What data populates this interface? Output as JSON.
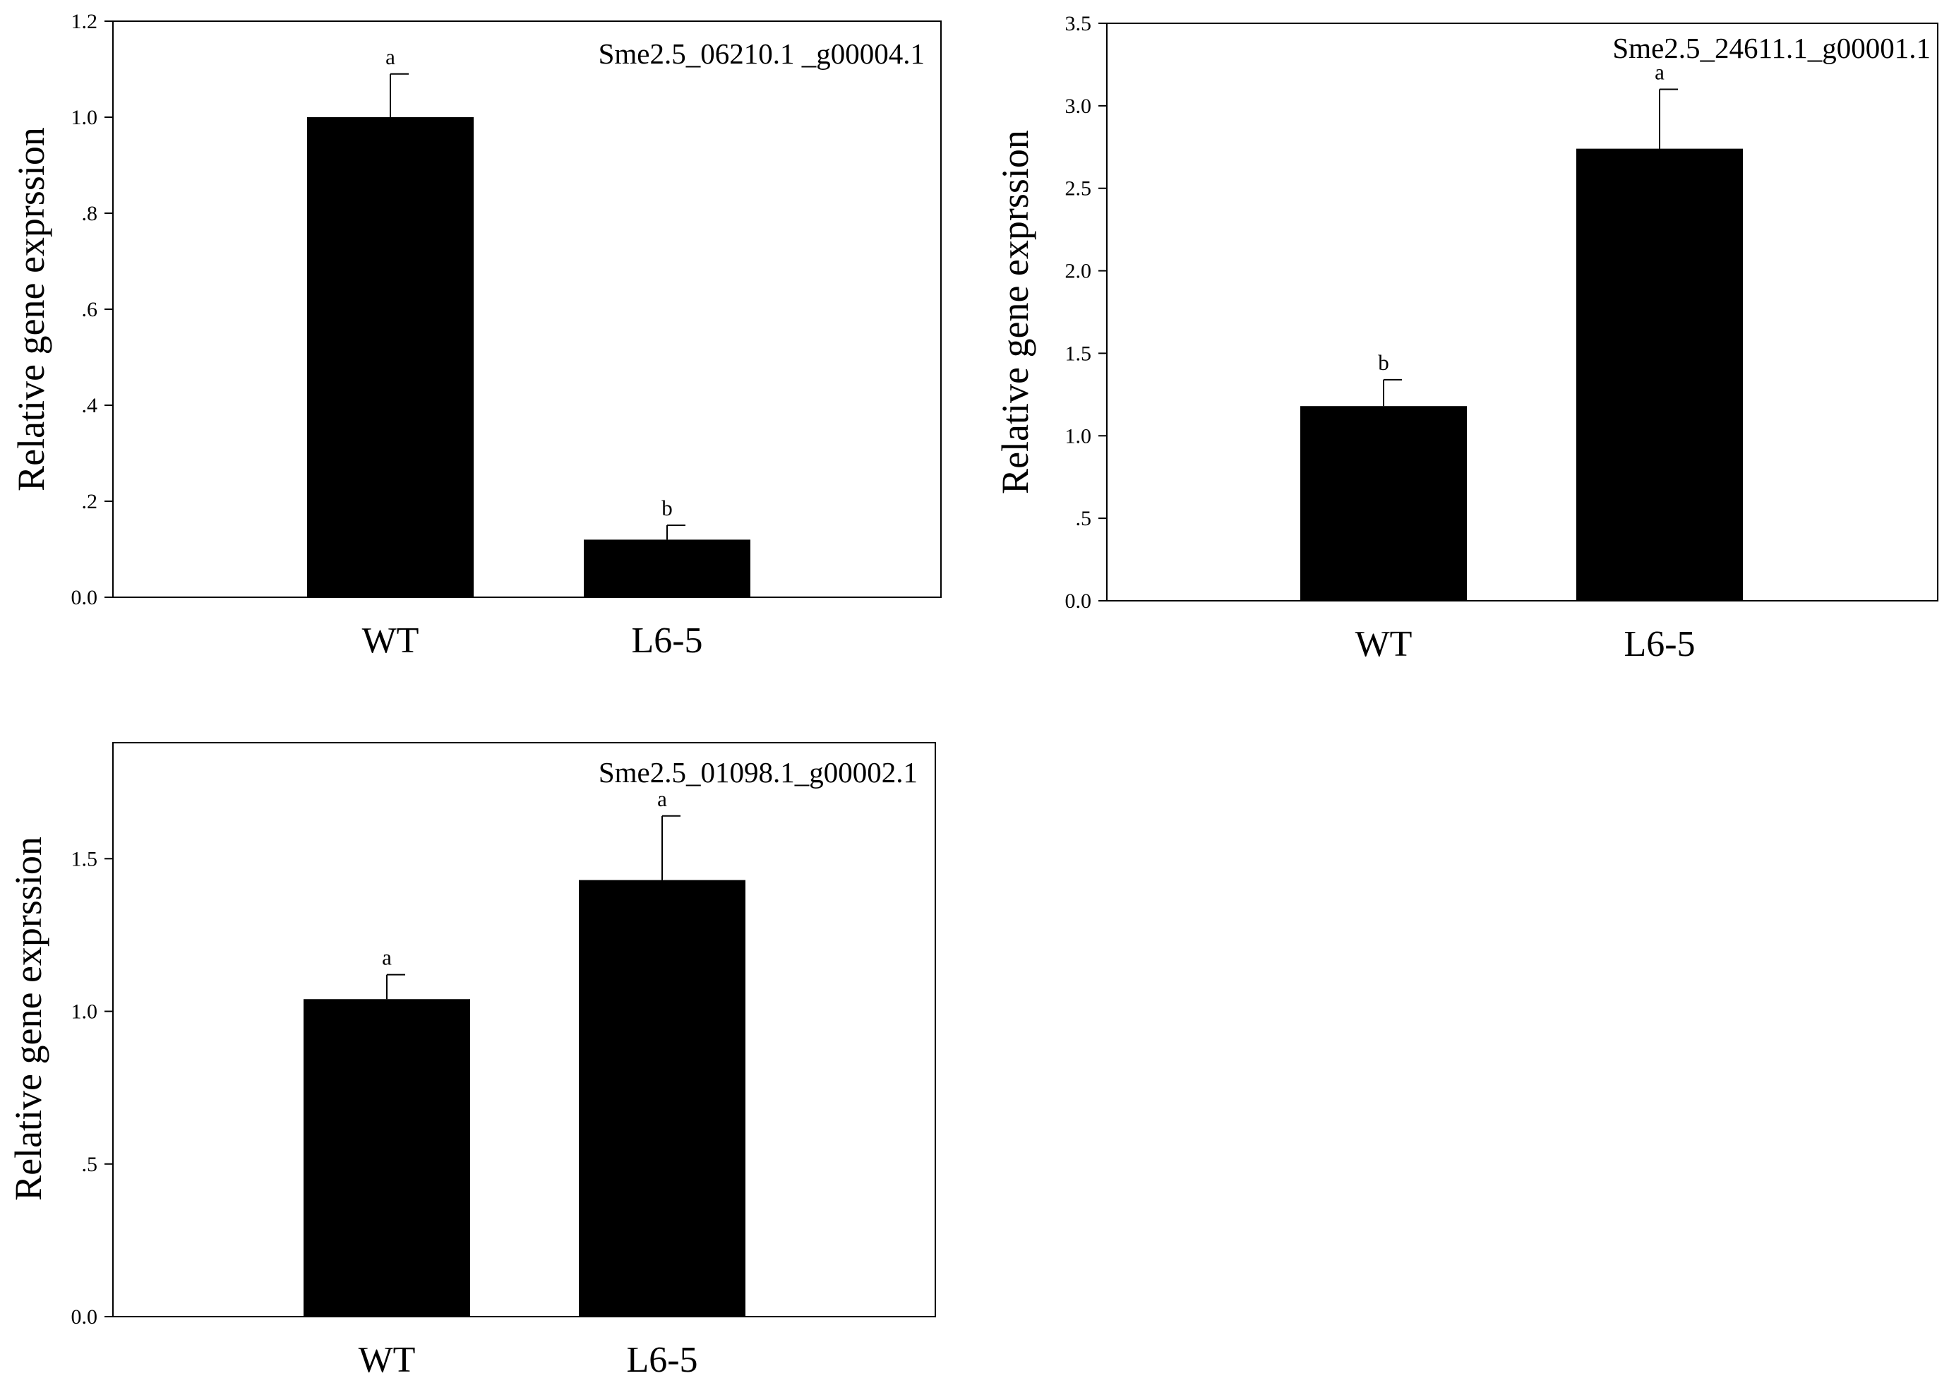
{
  "chart_data": [
    {
      "type": "bar",
      "gene": "Sme2.5_06210.1 _g00004.1",
      "ylabel": "Relative gene exprssion",
      "categories": [
        "WT",
        "L6-5"
      ],
      "values": [
        1.0,
        0.12
      ],
      "errors": [
        0.09,
        0.03
      ],
      "significance": [
        "a",
        "b"
      ],
      "ylim": [
        0,
        1.2
      ],
      "yticks": [
        0,
        0.2,
        0.4,
        0.6,
        0.8,
        1.0,
        1.2
      ],
      "ytick_labels": [
        "0.0",
        ".2",
        ".4",
        ".6",
        ".8",
        "1.0",
        "1.2"
      ],
      "bar_color": "#000000"
    },
    {
      "type": "bar",
      "gene": "Sme2.5_24611.1_g00001.1",
      "ylabel": "Relative gene exprssion",
      "categories": [
        "WT",
        "L6-5"
      ],
      "values": [
        1.18,
        2.74
      ],
      "errors": [
        0.16,
        0.36
      ],
      "significance": [
        "b",
        "a"
      ],
      "ylim": [
        0,
        3.5
      ],
      "yticks": [
        0,
        0.5,
        1.0,
        1.5,
        2.0,
        2.5,
        3.0,
        3.5
      ],
      "ytick_labels": [
        "0.0",
        ".5",
        "1.0",
        "1.5",
        "2.0",
        "2.5",
        "3.0",
        "3.5"
      ],
      "bar_color": "#000000"
    },
    {
      "type": "bar",
      "gene": "Sme2.5_01098.1_g00002.1",
      "ylabel": "Relative gene exprssion",
      "categories": [
        "WT",
        "L6-5"
      ],
      "values": [
        1.04,
        1.43
      ],
      "errors": [
        0.08,
        0.21
      ],
      "significance": [
        "a",
        "a"
      ],
      "ylim": [
        0,
        1.88
      ],
      "yticks": [
        0,
        0.5,
        1.0,
        1.5
      ],
      "ytick_labels": [
        "0.0",
        ".5",
        "1.0",
        "1.5"
      ],
      "bar_color": "#000000"
    }
  ]
}
